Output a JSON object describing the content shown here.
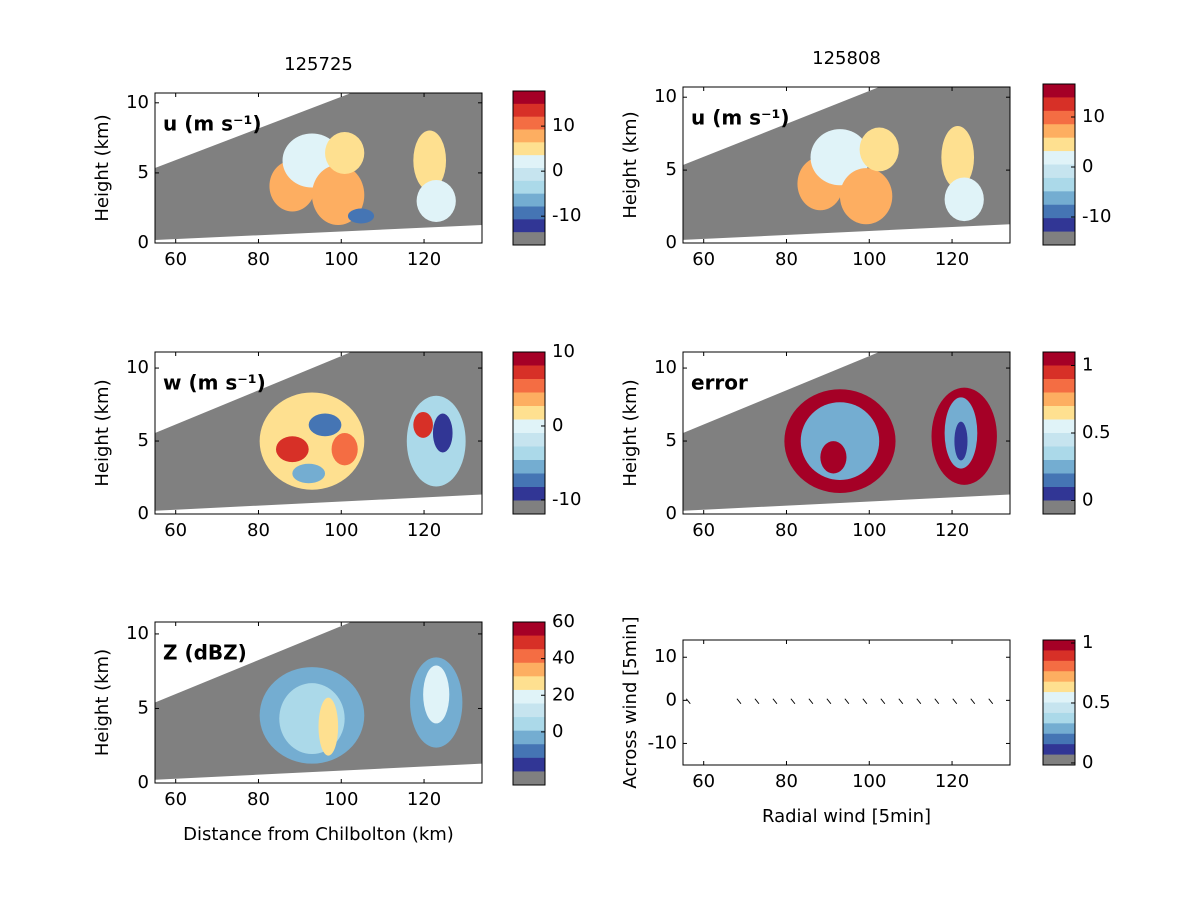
{
  "chart_data": [
    {
      "type": "heatmap",
      "title": "125725",
      "annotation": "u (m s⁻¹)",
      "ylabel": "Height (km)",
      "xlim": [
        55,
        134
      ],
      "ylim": [
        0,
        10.7
      ],
      "xticks": [
        60,
        80,
        100,
        120
      ],
      "yticks": [
        0,
        5,
        10
      ],
      "colorbar": {
        "lim": [
          -16.4,
          17.8
        ],
        "ticks": [
          -10,
          0,
          10
        ],
        "colors": [
          "#a50026",
          "#d73027",
          "#f46d43",
          "#fdae61",
          "#fee090",
          "#e0f3f8",
          "#c6e4ef",
          "#abd9e9",
          "#74add1",
          "#4575b4",
          "#313695",
          "#808080"
        ]
      }
    },
    {
      "type": "heatmap",
      "title": "125808",
      "annotation": "u (m s⁻¹)",
      "ylabel": "Height (km)",
      "xlim": [
        55,
        134
      ],
      "ylim": [
        0,
        10.7
      ],
      "xticks": [
        60,
        80,
        100,
        120
      ],
      "yticks": [
        0,
        5,
        10
      ],
      "colorbar": {
        "lim": [
          -15.6,
          16.6
        ],
        "ticks": [
          -10,
          0,
          10
        ],
        "colors": [
          "#a50026",
          "#d73027",
          "#f46d43",
          "#fdae61",
          "#fee090",
          "#e0f3f8",
          "#c6e4ef",
          "#abd9e9",
          "#74add1",
          "#4575b4",
          "#313695",
          "#808080"
        ]
      }
    },
    {
      "type": "heatmap",
      "annotation": "w (m s⁻¹)",
      "ylabel": "Height (km)",
      "xlim": [
        55,
        134
      ],
      "ylim": [
        0,
        11.1
      ],
      "xticks": [
        60,
        80,
        100,
        120
      ],
      "yticks": [
        0,
        5,
        10
      ],
      "colorbar": {
        "lim": [
          -11.9,
          10
        ],
        "ticks": [
          -10,
          0,
          10
        ],
        "colors": [
          "#a50026",
          "#d73027",
          "#f46d43",
          "#fdae61",
          "#fee090",
          "#e0f3f8",
          "#c6e4ef",
          "#abd9e9",
          "#74add1",
          "#4575b4",
          "#313695",
          "#808080"
        ]
      }
    },
    {
      "type": "heatmap",
      "annotation": "error",
      "ylabel": "Height (km)",
      "xlim": [
        55,
        134
      ],
      "ylim": [
        0,
        11.1
      ],
      "xticks": [
        60,
        80,
        100,
        120
      ],
      "yticks": [
        0,
        5,
        10
      ],
      "colorbar": {
        "lim": [
          -0.1,
          1.1
        ],
        "ticks": [
          0,
          0.5,
          1
        ],
        "colors": [
          "#a50026",
          "#d73027",
          "#f46d43",
          "#fdae61",
          "#fee090",
          "#e0f3f8",
          "#c6e4ef",
          "#abd9e9",
          "#74add1",
          "#4575b4",
          "#313695",
          "#808080"
        ]
      }
    },
    {
      "type": "heatmap",
      "annotation": "Z (dBZ)",
      "ylabel": "Height (km)",
      "xlabel": "Distance from Chilbolton (km)",
      "xlim": [
        55,
        134
      ],
      "ylim": [
        0,
        10.8
      ],
      "xticks": [
        60,
        80,
        100,
        120
      ],
      "yticks": [
        0,
        5,
        10
      ],
      "colorbar": {
        "lim": [
          -29,
          60
        ],
        "ticks": [
          0,
          20,
          40,
          60
        ],
        "colors": [
          "#a50026",
          "#d73027",
          "#f46d43",
          "#fdae61",
          "#fee090",
          "#e0f3f8",
          "#c6e4ef",
          "#abd9e9",
          "#74add1",
          "#4575b4",
          "#313695",
          "#808080"
        ]
      }
    },
    {
      "type": "quiver",
      "ylabel": "Across wind [5min]",
      "xlabel": "Radial wind [5min]",
      "xlim": [
        55,
        134
      ],
      "ylim": [
        -15,
        14
      ],
      "xticks": [
        60,
        80,
        100,
        120
      ],
      "yticks": [
        -10,
        0,
        10
      ],
      "colorbar": {
        "lim": [
          -0.017,
          1.025
        ],
        "ticks": [
          0,
          0.5,
          1
        ],
        "colors": [
          "#a50026",
          "#d73027",
          "#f46d43",
          "#fdae61",
          "#fee090",
          "#e0f3f8",
          "#c6e4ef",
          "#abd9e9",
          "#74add1",
          "#4575b4",
          "#313695",
          "#808080"
        ]
      }
    }
  ]
}
